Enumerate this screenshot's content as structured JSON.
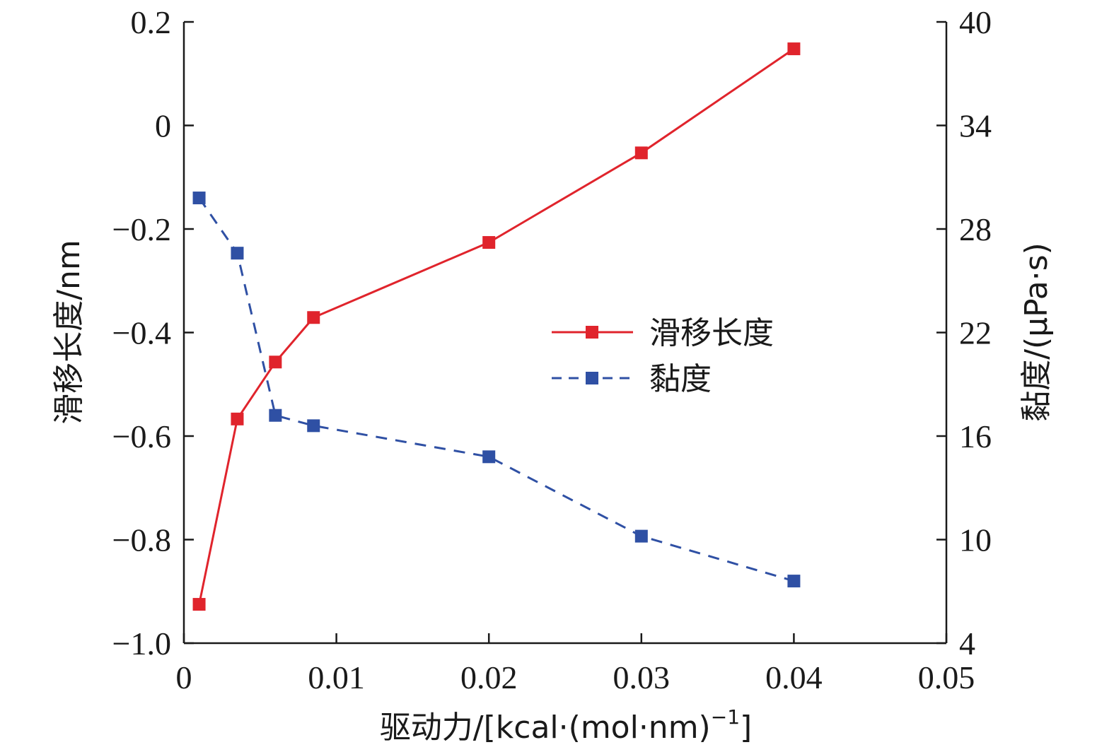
{
  "chart_data": {
    "type": "line",
    "xlabel": "驱动力/[kcal·(mol·nm)",
    "xlabel_sup": "−1",
    "xlabel_close": "]",
    "ylabel_left": "滑移长度/nm",
    "ylabel_right": "黏度/(μPa·s)",
    "xlim": [
      0,
      0.05
    ],
    "ylim_left": [
      -1.0,
      0.2
    ],
    "ylim_right": [
      4,
      40
    ],
    "x_ticks": [
      0,
      0.01,
      0.02,
      0.03,
      0.04,
      0.05
    ],
    "x_tick_labels": [
      "0",
      "0.01",
      "0.02",
      "0.03",
      "0.04",
      "0.05"
    ],
    "y_left_ticks": [
      0.2,
      0,
      -0.2,
      -0.4,
      -0.6,
      -0.8,
      -1.0
    ],
    "y_left_tick_labels": [
      "0.2",
      "0",
      "−0.2",
      "−0.4",
      "−0.6",
      "−0.8",
      "−1.0"
    ],
    "y_right_ticks": [
      40,
      34,
      28,
      22,
      16,
      10,
      4
    ],
    "y_right_tick_labels": [
      "40",
      "34",
      "28",
      "22",
      "16",
      "10",
      "4"
    ],
    "grid": false,
    "legend_position": "center-right",
    "series": [
      {
        "name": "滑移长度",
        "axis": "left",
        "color": "#e0242c",
        "line_style": "solid",
        "marker": "square",
        "x": [
          0.001,
          0.0035,
          0.006,
          0.0085,
          0.02,
          0.03,
          0.04
        ],
        "y": [
          -0.925,
          -0.567,
          -0.457,
          -0.371,
          -0.226,
          -0.053,
          0.148
        ]
      },
      {
        "name": "黏度",
        "axis": "right",
        "color": "#2f50a4",
        "line_style": "dashed",
        "marker": "square",
        "x": [
          0.001,
          0.0035,
          0.006,
          0.0085,
          0.02,
          0.03,
          0.04
        ],
        "y": [
          29.8,
          26.6,
          17.2,
          16.6,
          14.8,
          10.2,
          7.6
        ]
      }
    ]
  }
}
